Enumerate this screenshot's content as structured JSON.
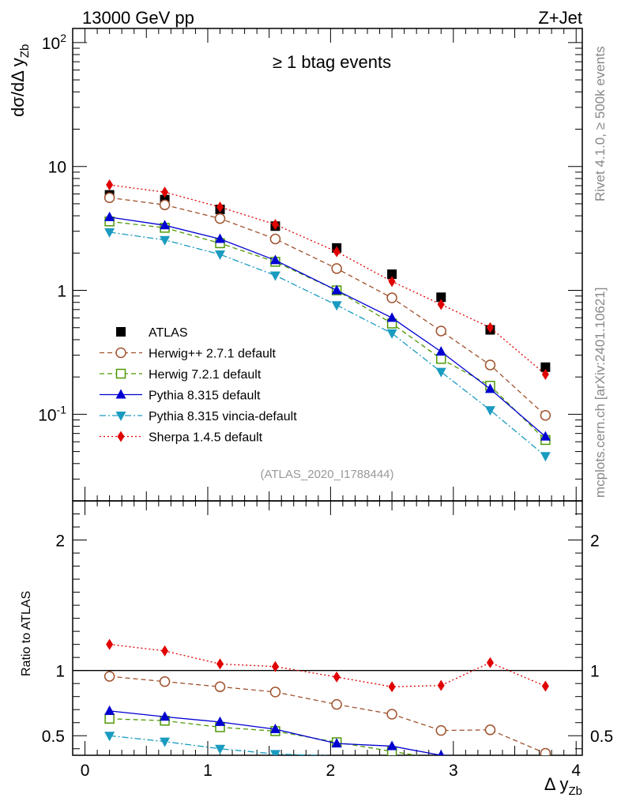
{
  "header": {
    "left": "13000 GeV pp",
    "right": "Z+Jet"
  },
  "side": {
    "top": "Rivet 4.1.0, ≥ 500k events",
    "bottom": "mcplots.cern.ch [arXiv:2401.10621]"
  },
  "colors": {
    "ATLAS": "#000000",
    "Herwig++ 2.7.1 default": "#a0522d",
    "Herwig 7.2.1 default": "#4e9a06",
    "Pythia 8.315 default": "#0000d0",
    "Pythia 8.315 vincia-default": "#1a9bc0",
    "Sherpa 1.4.5 default": "#e00000"
  },
  "chart_data": [
    {
      "type": "scatter",
      "panel": "main",
      "title": "≥ 1 btag events",
      "analysis_tag": "(ATLAS_2020_I1788444)",
      "ylabel": "dσ/dΔ y_{Zb}",
      "yscale": "log",
      "ylim": [
        0.02,
        130
      ],
      "ytick_labels": [
        "10^{-1}",
        "1",
        "10",
        "10^{2}"
      ],
      "xlim": [
        -0.1,
        4.05
      ],
      "x": [
        0.2,
        0.65,
        1.1,
        1.55,
        2.05,
        2.5,
        2.9,
        3.3,
        3.75
      ],
      "series": [
        {
          "name": "ATLAS",
          "marker": "square",
          "style": "none",
          "values": [
            5.9,
            5.4,
            4.5,
            3.3,
            2.2,
            1.35,
            0.88,
            0.48,
            0.24
          ]
        },
        {
          "name": "Herwig++ 2.7.1 default",
          "marker": "open-circle",
          "style": "dashed",
          "values": [
            5.6,
            4.9,
            3.8,
            2.6,
            1.5,
            0.87,
            0.47,
            0.25,
            0.098
          ]
        },
        {
          "name": "Herwig 7.2.1 default",
          "marker": "open-square",
          "style": "dashed",
          "values": [
            3.6,
            3.2,
            2.4,
            1.7,
            1.0,
            0.54,
            0.28,
            0.17,
            0.062
          ]
        },
        {
          "name": "Pythia 8.315 default",
          "marker": "triangle-up",
          "style": "solid",
          "values": [
            3.9,
            3.35,
            2.6,
            1.75,
            1.0,
            0.6,
            0.32,
            0.16,
            0.066
          ]
        },
        {
          "name": "Pythia 8.315 vincia-default",
          "marker": "triangle-down",
          "style": "dashdot",
          "values": [
            2.95,
            2.55,
            1.95,
            1.32,
            0.76,
            0.45,
            0.22,
            0.108,
            0.046
          ]
        },
        {
          "name": "Sherpa 1.4.5 default",
          "marker": "diamond",
          "style": "dotted",
          "values": [
            7.1,
            6.2,
            4.7,
            3.4,
            2.05,
            1.18,
            0.77,
            0.5,
            0.21
          ]
        }
      ]
    },
    {
      "type": "scatter",
      "panel": "ratio",
      "ylabel": "Ratio to ATLAS",
      "xlabel": "Δ y_{Zb}",
      "ylim": [
        0.35,
        2.3
      ],
      "ytick_labels": [
        "0.5",
        "1",
        "2"
      ],
      "xtick_labels": [
        "0",
        "1",
        "2",
        "3",
        "4"
      ],
      "reference_line": 1,
      "x": [
        0.2,
        0.65,
        1.1,
        1.55,
        2.05,
        2.5,
        2.9,
        3.3,
        3.75
      ],
      "series": [
        {
          "name": "Herwig++ 2.7.1 default",
          "values": [
            0.955,
            0.915,
            0.875,
            0.835,
            0.74,
            0.665,
            0.54,
            0.545,
            0.365
          ]
        },
        {
          "name": "Herwig 7.2.1 default",
          "values": [
            0.63,
            0.615,
            0.565,
            0.535,
            0.45,
            0.38,
            null,
            null,
            null
          ]
        },
        {
          "name": "Pythia 8.315 default",
          "values": [
            0.69,
            0.645,
            0.605,
            0.55,
            0.44,
            0.42,
            0.35,
            null,
            null
          ]
        },
        {
          "name": "Pythia 8.315 vincia-default",
          "values": [
            0.5,
            0.455,
            0.4,
            0.36,
            null,
            null,
            null,
            null,
            null
          ]
        },
        {
          "name": "Sherpa 1.4.5 default",
          "values": [
            1.2,
            1.15,
            1.05,
            1.03,
            0.95,
            0.875,
            0.885,
            1.06,
            0.88
          ]
        }
      ]
    }
  ]
}
